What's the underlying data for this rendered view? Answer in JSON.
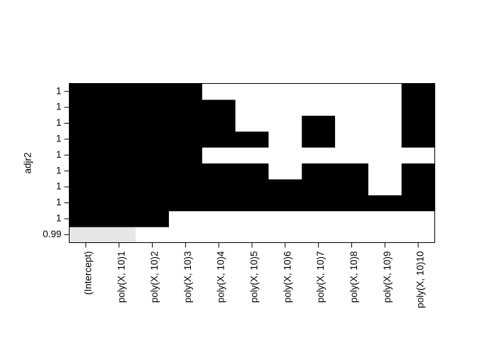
{
  "chart_data": {
    "type": "heatmap",
    "title": "",
    "xlabel": "",
    "ylabel": "adjr2",
    "x_categories": [
      "(Intercept)",
      "poly(X, 10)1",
      "poly(X, 10)2",
      "poly(X, 10)3",
      "poly(X, 10)4",
      "poly(X, 10)5",
      "poly(X, 10)6",
      "poly(X, 10)7",
      "poly(X, 10)8",
      "poly(X, 10)9",
      "poly(X, 10)10"
    ],
    "y_tick_labels": [
      "0.99",
      "1",
      "1",
      "1",
      "1",
      "1",
      "1",
      "1",
      "1",
      "1"
    ],
    "cell_values_note": "rows listed bottom to top; 2 = black (included, top tier), 1 = light grey (lowest tier), 0 = white (excluded)",
    "rows": [
      [
        1,
        1,
        0,
        0,
        0,
        0,
        0,
        0,
        0,
        0,
        0
      ],
      [
        2,
        2,
        2,
        0,
        0,
        0,
        0,
        0,
        0,
        0,
        0
      ],
      [
        2,
        2,
        2,
        2,
        2,
        2,
        2,
        2,
        2,
        2,
        2
      ],
      [
        2,
        2,
        2,
        2,
        2,
        2,
        2,
        2,
        2,
        0,
        2
      ],
      [
        2,
        2,
        2,
        2,
        2,
        2,
        0,
        2,
        2,
        0,
        2
      ],
      [
        2,
        2,
        2,
        2,
        0,
        0,
        0,
        0,
        0,
        0,
        0
      ],
      [
        2,
        2,
        2,
        2,
        2,
        2,
        0,
        2,
        0,
        0,
        2
      ],
      [
        2,
        2,
        2,
        2,
        2,
        0,
        0,
        2,
        0,
        0,
        2
      ],
      [
        2,
        2,
        2,
        2,
        2,
        0,
        0,
        0,
        0,
        0,
        2
      ],
      [
        2,
        2,
        2,
        2,
        0,
        0,
        0,
        0,
        0,
        0,
        2
      ]
    ],
    "colors": {
      "2": "#000000",
      "1": "#e6e6e6",
      "0": "#ffffff"
    },
    "grid": false,
    "legend": "none"
  }
}
